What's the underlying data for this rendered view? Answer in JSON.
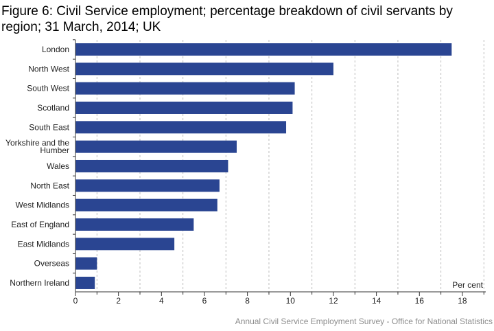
{
  "colors": {
    "bar": "#2a4592",
    "grid": "#bdbdbd",
    "axis": "#333333",
    "source_text": "#8c8c8c"
  },
  "chart_data": {
    "type": "bar",
    "orientation": "horizontal",
    "title": "Figure 6: Civil Service employment; percentage breakdown of civil servants by region; 31 March, 2014; UK",
    "xlabel": "Per cent",
    "ylabel": "",
    "categories": [
      "London",
      "North West",
      "South West",
      "Scotland",
      "South East",
      "Yorkshire and the Humber",
      "Wales",
      "North East",
      "West Midlands",
      "East of England",
      "East Midlands",
      "Overseas",
      "Northern Ireland"
    ],
    "category_label_lines": [
      [
        "London"
      ],
      [
        "North West"
      ],
      [
        "South West"
      ],
      [
        "Scotland"
      ],
      [
        "South East"
      ],
      [
        "Yorkshire and the",
        "Humber"
      ],
      [
        "Wales"
      ],
      [
        "North East"
      ],
      [
        "West Midlands"
      ],
      [
        "East of England"
      ],
      [
        "East Midlands"
      ],
      [
        "Overseas"
      ],
      [
        "Northern Ireland"
      ]
    ],
    "values": [
      17.5,
      12.0,
      10.2,
      10.1,
      9.8,
      7.5,
      7.1,
      6.7,
      6.6,
      5.5,
      4.6,
      1.0,
      0.9
    ],
    "xlim": [
      0,
      19
    ],
    "xticks": [
      0,
      2,
      4,
      6,
      8,
      10,
      12,
      14,
      16,
      18
    ],
    "grid": "vertical dashed",
    "legend": "none",
    "source": "Annual Civil Service Employment Survey - Office for National Statistics"
  }
}
